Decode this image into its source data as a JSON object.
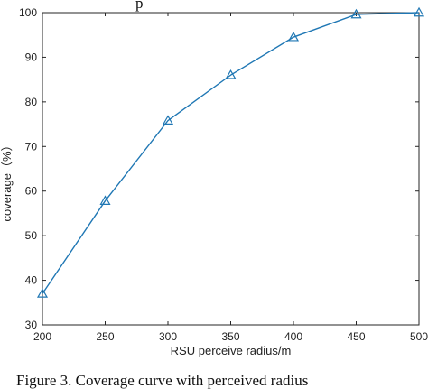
{
  "top_fragment": "p",
  "caption": "Figure 3. Coverage curve with perceived radius",
  "colors": {
    "series": "#1f77b4",
    "axis": "#262626"
  },
  "chart_data": {
    "type": "line",
    "title": "",
    "xlabel": "RSU perceive radius/m",
    "ylabel": "coverage（%）",
    "xlim": [
      200,
      500
    ],
    "ylim": [
      30,
      100
    ],
    "xticks": [
      200,
      250,
      300,
      350,
      400,
      450,
      500
    ],
    "yticks": [
      30,
      40,
      50,
      60,
      70,
      80,
      90,
      100
    ],
    "grid": false,
    "legend": "none",
    "marker": "triangle-open",
    "series": [
      {
        "x": [
          200,
          250,
          300,
          350,
          400,
          450,
          500
        ],
        "values": [
          37,
          57.8,
          75.8,
          86,
          94.5,
          99.6,
          100
        ]
      }
    ]
  }
}
